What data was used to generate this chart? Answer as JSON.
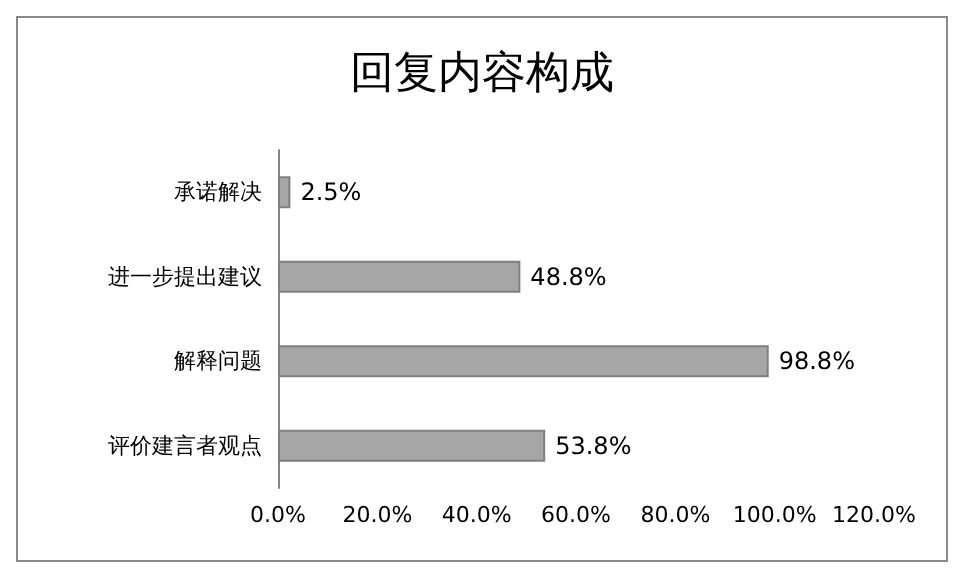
{
  "chart_data": {
    "type": "bar",
    "title": "回复内容构成",
    "orientation": "horizontal",
    "categories": [
      "承诺解决",
      "进一步提出建议",
      "解释问题",
      "评价建言者观点"
    ],
    "values": [
      2.5,
      48.8,
      98.8,
      53.8
    ],
    "value_labels": [
      "2.5%",
      "48.8%",
      "98.8%",
      "53.8%"
    ],
    "color": "#a6a6a6",
    "xlim": [
      0,
      120
    ],
    "xticks": [
      {
        "value": 0,
        "label": "0.0%"
      },
      {
        "value": 20,
        "label": "20.0%"
      },
      {
        "value": 40,
        "label": "40.0%"
      },
      {
        "value": 60,
        "label": "60.0%"
      },
      {
        "value": 80,
        "label": "80.0%"
      },
      {
        "value": 100,
        "label": "100.0%"
      },
      {
        "value": 120,
        "label": "120.0%"
      }
    ],
    "grid": false
  }
}
